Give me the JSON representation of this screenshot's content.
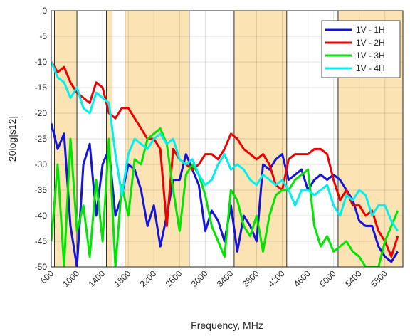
{
  "chart_data": {
    "type": "line",
    "xlabel": "Frequency, MHz",
    "ylabel": "20log|s12|",
    "x": [
      600,
      700,
      800,
      900,
      1000,
      1100,
      1200,
      1300,
      1400,
      1500,
      1600,
      1700,
      1800,
      1900,
      2000,
      2100,
      2200,
      2300,
      2400,
      2500,
      2600,
      2700,
      2800,
      2900,
      3000,
      3100,
      3200,
      3300,
      3400,
      3500,
      3600,
      3700,
      3800,
      3900,
      4000,
      4100,
      4200,
      4300,
      4400,
      4500,
      4600,
      4700,
      4800,
      4900,
      5000,
      5100,
      5200,
      5300,
      5400,
      5500,
      5600,
      5700,
      5800,
      5900,
      6000
    ],
    "series": [
      {
        "name": "1V - 1H",
        "color": "#1414d8",
        "values": [
          -22,
          -27,
          -24,
          -42,
          -50,
          -30,
          -26,
          -40,
          -30,
          -27,
          -40,
          -36,
          -30,
          -31,
          -35,
          -42,
          -38,
          -46,
          -40,
          -33,
          -33,
          -28,
          -31,
          -34,
          -43,
          -39,
          -41,
          -45,
          -38,
          -47,
          -40,
          -42,
          -45,
          -30,
          -31,
          -29,
          -28,
          -33,
          -32,
          -31,
          -35,
          -33,
          -32,
          -33,
          -32,
          -33,
          -35,
          -37,
          -41,
          -42,
          -42,
          -46,
          -48,
          -49,
          -47
        ]
      },
      {
        "name": "1V - 2H",
        "color": "#ee0000",
        "values": [
          -10,
          -12,
          -11,
          -14,
          -16,
          -17,
          -18,
          -14,
          -15,
          -20,
          -21,
          -19,
          -19,
          -21,
          -23,
          -25,
          -25,
          -27,
          -42,
          -27,
          -29,
          -30,
          -31,
          -30,
          -28,
          -28,
          -29,
          -27,
          -24,
          -25,
          -27,
          -28,
          -29,
          -28,
          -30,
          -34,
          -35,
          -29,
          -28,
          -28,
          -28,
          -27,
          -27,
          -28,
          -33,
          -37,
          -35,
          -38,
          -38,
          -40,
          -39,
          -43,
          -45,
          -48,
          -44
        ]
      },
      {
        "name": "1V - 3H",
        "color": "#00e600",
        "values": [
          -45,
          -30,
          -50,
          -25,
          -43,
          -38,
          -48,
          -33,
          -45,
          -25,
          -50,
          -34,
          -40,
          -29,
          -30,
          -25,
          -24,
          -23,
          -26,
          -35,
          -43,
          -32,
          -30,
          -32,
          -36,
          -42,
          -45,
          -48,
          -35,
          -37,
          -42,
          -44,
          -40,
          -47,
          -40,
          -36,
          -35,
          -35,
          -33,
          -32,
          -31,
          -42,
          -46,
          -44,
          -47,
          -46,
          -45,
          -47,
          -48,
          -50,
          -50,
          -50,
          -45,
          -42,
          -39
        ]
      },
      {
        "name": "1V - 4H",
        "color": "#00f0f0",
        "values": [
          -10,
          -13,
          -14,
          -17,
          -15,
          -19,
          -20,
          -16,
          -17,
          -18,
          -28,
          -36,
          -28,
          -25,
          -26,
          -27,
          -25,
          -24,
          -26,
          -25,
          -29,
          -30,
          -29,
          -32,
          -34,
          -33,
          -30,
          -28,
          -31,
          -30,
          -31,
          -33,
          -34,
          -32,
          -33,
          -34,
          -33,
          -35,
          -38,
          -35,
          -35,
          -36,
          -35,
          -34,
          -38,
          -40,
          -36,
          -37,
          -35,
          -36,
          -40,
          -38,
          -38,
          -41,
          -43
        ]
      }
    ],
    "bands": [
      [
        650,
        1000
      ],
      [
        1460,
        1550
      ],
      [
        1750,
        2750
      ],
      [
        3450,
        4270
      ],
      [
        5070,
        6080
      ]
    ],
    "band_color": "#fbe3b4",
    "xlim": [
      600,
      6080
    ],
    "xticks": [
      600,
      1000,
      1400,
      1800,
      2200,
      2600,
      3000,
      3400,
      3800,
      4200,
      4600,
      5000,
      5400,
      5800
    ],
    "ylim": [
      -50,
      0
    ],
    "yticks": [
      0,
      -5,
      -10,
      -15,
      -20,
      -25,
      -30,
      -35,
      -40,
      -45,
      -50
    ],
    "grid": true,
    "legend": "upper right"
  }
}
